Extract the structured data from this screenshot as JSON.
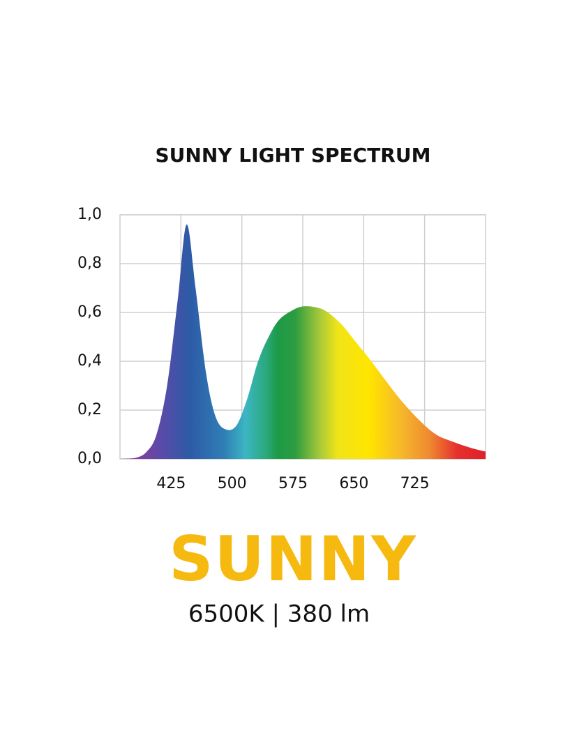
{
  "chart_data": {
    "type": "area",
    "title": "SUNNY LIGHT SPECTRUM",
    "x": [
      350,
      370,
      383,
      395,
      408,
      421,
      432,
      443,
      456,
      468,
      481,
      494,
      507,
      520,
      533,
      546,
      563,
      576,
      593,
      606,
      623,
      640,
      657,
      675,
      696,
      718,
      739,
      760,
      782,
      800
    ],
    "values": [
      0,
      0.005,
      0.03,
      0.1,
      0.3,
      0.65,
      0.96,
      0.7,
      0.35,
      0.17,
      0.12,
      0.14,
      0.25,
      0.4,
      0.5,
      0.57,
      0.61,
      0.625,
      0.62,
      0.6,
      0.55,
      0.48,
      0.41,
      0.33,
      0.24,
      0.16,
      0.1,
      0.07,
      0.045,
      0.03
    ],
    "xlim": [
      350,
      800
    ],
    "xticks": [
      425,
      500,
      575,
      650,
      725
    ],
    "ylim": [
      0,
      1
    ],
    "yticks": [
      {
        "value": 0,
        "label": "0,0"
      },
      {
        "value": 0.2,
        "label": "0,2"
      },
      {
        "value": 0.4,
        "label": "0,4"
      },
      {
        "value": 0.6,
        "label": "0,6"
      },
      {
        "value": 0.8,
        "label": "0,8"
      },
      {
        "value": 1,
        "label": "1,0"
      }
    ],
    "grid": true
  },
  "brand": "SUNNY",
  "specs": "6500K | 380 lm"
}
